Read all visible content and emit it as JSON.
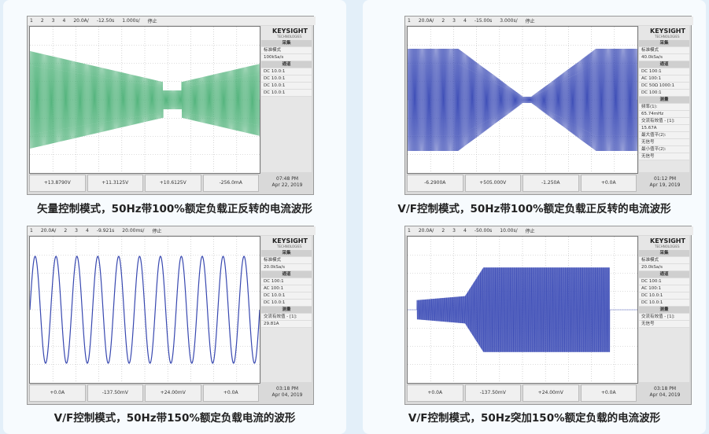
{
  "panels": [
    {
      "caption": "矢量控制模式，50Hz带100%额定负载正反转的电流波形",
      "top": [
        "1",
        "2",
        "3",
        "4",
        "20.0A/",
        "-12.50s",
        "1.000s/",
        "停止"
      ],
      "brand": "KEYSIGHT",
      "brand_sub": "TECHNOLOGIES",
      "side": [
        "采集",
        "标准模式",
        "100kSa/s",
        "通道",
        "DC 10.0:1",
        "DC 10.0:1",
        "DC 10.0:1",
        "DC 10.0:1"
      ],
      "bottom": [
        "+13.8790V",
        "+11.3125V",
        "+10.6125V",
        "-256.0mA"
      ],
      "time": "07:48 PM",
      "date": "Apr 22, 2019"
    },
    {
      "caption": "V/F控制模式，50Hz带100%额定负载正反转的电流波形",
      "top": [
        "1",
        "20.0A/",
        "2",
        "3",
        "4",
        "-15.00s",
        "3.000s/",
        "停止"
      ],
      "brand": "KEYSIGHT",
      "brand_sub": "TECHNOLOGIES",
      "side": [
        "采集",
        "标准模式",
        "40.0kSa/s",
        "通道",
        "DC 100:1",
        "AC 100:1",
        "DC 50Ω 1000:1",
        "DC 100:1",
        "测量",
        "频率(1):",
        "65.74mHz",
        "交流有效值 - [1]:",
        "15.67A",
        "最大值平(2):",
        "无信号",
        "最小值平(2):",
        "无信号"
      ],
      "bottom": [
        "-6.2900A",
        "+505.000V",
        "-1.250A",
        "+0.0A"
      ],
      "time": "01:12 PM",
      "date": "Apr 19, 2019"
    },
    {
      "caption": "V/F控制模式，50Hz带150%额定负载电流的波形",
      "top": [
        "1",
        "20.0A/",
        "2",
        "3",
        "4",
        "-9.921s",
        "20.00ms/",
        "停止"
      ],
      "brand": "KEYSIGHT",
      "brand_sub": "TECHNOLOGIES",
      "side": [
        "采集",
        "标准模式",
        "20.0kSa/s",
        "通道",
        "DC 100:1",
        "AC 100:1",
        "DC 10.0:1",
        "DC 10.0:1",
        "测量",
        "交流有效值 - [1]:",
        "29.81A"
      ],
      "bottom": [
        "+0.0A",
        "-137.50mV",
        "+24.00mV",
        "+0.0A"
      ],
      "time": "03:18 PM",
      "date": "Apr 04, 2019"
    },
    {
      "caption": "V/F控制模式，50Hz突加150%额定负载的电流波形",
      "top": [
        "1",
        "20.0A/",
        "2",
        "3",
        "4",
        "-50.00s",
        "10.00s/",
        "停止"
      ],
      "brand": "KEYSIGHT",
      "brand_sub": "TECHNOLOGIES",
      "side": [
        "采集",
        "标准模式",
        "20.0kSa/s",
        "通道",
        "DC 100:1",
        "AC 100:1",
        "DC 10.0:1",
        "DC 10.0:1",
        "测量",
        "交流有效值 - [1]:",
        "无信号"
      ],
      "bottom": [
        "+0.0A",
        "-137.50mV",
        "+24.00mV",
        "+0.0A"
      ],
      "time": "03:18 PM",
      "date": "Apr 04, 2019"
    }
  ]
}
